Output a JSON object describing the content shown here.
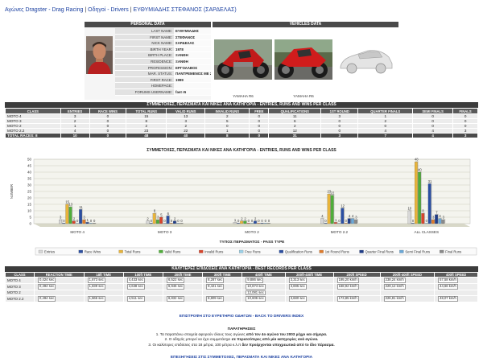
{
  "breadcrumb": {
    "root": "Αγώνες Dragster - Drag Racing",
    "sep1": "|",
    "section": "Οδηγοί - Drivers",
    "sep2": "|",
    "current": "ΕΥΘΥΜΙΑΔΗΣ ΣΤΕΦΑΝΟΣ (ΣΑΡΔΕΛΑΣ)"
  },
  "personal": {
    "header": "PERSONAL DATA",
    "fields": [
      {
        "k": "LAST NAME:",
        "v": "ΕΥΘΥΜΙΑΔΗΣ"
      },
      {
        "k": "FIRST NAME:",
        "v": "ΣΤΕΦΑΝΟΣ"
      },
      {
        "k": "NICK NAME:",
        "v": "ΣΑΡΔΕΛΑΣ"
      },
      {
        "k": "BIRTH YEAR:",
        "v": "1978"
      },
      {
        "k": "BIRTH PLACE:",
        "v": "ΞΑΝΘΗ"
      },
      {
        "k": "RESIDENCE:",
        "v": "ΞΑΝΘΗ"
      },
      {
        "k": "PROFESSION:",
        "v": "ΕΡΓΟΛΑΒΟΣ"
      },
      {
        "k": "MAR. STATUS:",
        "v": "ΠΑΝΤΡΕΜΕΝΟΣ ΜΕ 2 ΠΑΙΔΙΑ"
      },
      {
        "k": "FIRST RACE:",
        "v": "1999"
      },
      {
        "k": "HOMEPAGE:",
        "v": ""
      },
      {
        "k": "FORUMS USERNAME:",
        "v": "fast r6"
      }
    ]
  },
  "vehicles": {
    "header": "VEHICLES DATA",
    "captions": [
      "YAMAHA R6",
      "YAMAHA R6"
    ]
  },
  "stats": {
    "title": "ΣΥΜΜΕΤΟΧΕΣ, ΠΕΡΑΣΜΑΤΑ ΚΑΙ ΝΙΚΕΣ ΑΝΑ ΚΑΤΗΓΟΡΙΑ - ENTRIES, RUNS AND WINS PER CLASS",
    "columns": [
      "CLASS",
      "ENTRIES",
      "RACE WINS",
      "TOTAL RUNS",
      "VALID RUNS",
      "INVALID RUNS",
      "FREE",
      "QUALIFICATIONS",
      "1ST ROUND",
      "QUARTER FINALS",
      "SEMI FINALS",
      "FINALS"
    ],
    "rows": [
      [
        "MOTO 4",
        "3",
        "0",
        "15",
        "13",
        "2",
        "0",
        "11",
        "3",
        "1",
        "0",
        "0"
      ],
      [
        "MOTO 3",
        "2",
        "0",
        "8",
        "3",
        "5",
        "0",
        "6",
        "0",
        "2",
        "0",
        "0"
      ],
      [
        "MOTO 2",
        "1",
        "0",
        "2",
        "2",
        "0",
        "0",
        "2",
        "0",
        "0",
        "0",
        "0"
      ],
      [
        "MOTO 2.2",
        "4",
        "0",
        "23",
        "22",
        "1",
        "0",
        "12",
        "0",
        "4",
        "4",
        "3"
      ]
    ],
    "total": [
      "TOTAL RACES: 8",
      "10",
      "0",
      "48",
      "40",
      "8",
      "0",
      "31",
      "3",
      "7",
      "4",
      "3"
    ]
  },
  "chart_data": {
    "type": "bar",
    "title": "ΣΥΜΜΕΤΟΧΕΣ, ΠΕΡΑΣΜΑΤΑ ΚΑΙ ΝΙΚΕΣ ΑΝΑ ΚΑΤΗΓΟΡΙΑ - ENTRIES, RUNS AND WINS PER CLASS",
    "xlabel": "ΤΥΠΟΣ ΠΕΡΑΣΜΑΤΟΣ - PASS TYPE",
    "ylabel": "NUMBER",
    "ylim": [
      0,
      50
    ],
    "yticks": [
      0,
      5,
      10,
      15,
      20,
      25,
      30,
      35,
      40,
      45,
      50
    ],
    "categories": [
      "MOTO 4",
      "MOTO 3",
      "MOTO 2",
      "MOTO 2.2",
      "ALL CLASSES"
    ],
    "legend_position": "bottom",
    "grid": true,
    "series": [
      {
        "name": "Entries",
        "color": "#d8d8d8",
        "values": [
          3,
          2,
          1,
          4,
          10
        ]
      },
      {
        "name": "Race Wins",
        "color": "#2b4fa3",
        "values": [
          0,
          0,
          0,
          0,
          0
        ]
      },
      {
        "name": "Total Runs",
        "color": "#e8b43a",
        "values": [
          15,
          8,
          2,
          23,
          48
        ]
      },
      {
        "name": "Valid Runs",
        "color": "#4fae3a",
        "values": [
          13,
          3,
          2,
          22,
          40
        ]
      },
      {
        "name": "Invalid Runs",
        "color": "#d8452c",
        "values": [
          2,
          5,
          0,
          1,
          8
        ]
      },
      {
        "name": "Free Runs",
        "color": "#9bd1e8",
        "values": [
          0,
          0,
          0,
          0,
          0
        ]
      },
      {
        "name": "Qualification Runs",
        "color": "#2b4fa3",
        "values": [
          11,
          6,
          2,
          12,
          31
        ]
      },
      {
        "name": "1st Round Runs",
        "color": "#e07b2a",
        "values": [
          3,
          0,
          0,
          0,
          3
        ]
      },
      {
        "name": "Quarter Final Runs",
        "color": "#1f3d8a",
        "values": [
          1,
          2,
          0,
          4,
          7
        ]
      },
      {
        "name": "Semi Final Runs",
        "color": "#6aa8d8",
        "values": [
          0,
          0,
          0,
          4,
          4
        ]
      },
      {
        "name": "Final Runs",
        "color": "#8a8a8a",
        "values": [
          0,
          0,
          0,
          3,
          3
        ]
      }
    ]
  },
  "best": {
    "title": "ΚΑΛΥΤΕΡΕΣ ΕΠΙΔΟΣΕΙΣ ΑΝΑ ΚΑΤΗΓΟΡΙΑ - BEST RECORDS PER CLASS",
    "columns": [
      "CLASS",
      "REACTION TIME",
      "18ft TIME",
      "100ft TIME",
      "200ft TIME",
      "300ft TIME",
      "400ft TIME",
      "200ft-400ft TIME",
      "200ft SPEED",
      "200ft-400ft SPEED",
      "400ft SPEED"
    ],
    "rows": [
      [
        "MOTO 4",
        "0,424 sec",
        "1,673 sec",
        "4,433 sec",
        "6,522 sec",
        "8,287 sec",
        "9,886 sec",
        "3,313 sec",
        "195,20 km/h",
        "238,24 km/h",
        "57,58 km/h"
      ],
      [
        "MOTO 3",
        "0,494 sec",
        "1,839 sec",
        "4,638 sec",
        "6,946 sec",
        "9,421 sec",
        "10,674 sec",
        "3,695 sec",
        "168,92 km/h",
        "229,12 km/h",
        "44,66 km/h"
      ],
      [
        "MOTO 2",
        "",
        "",
        "",
        "",
        "",
        "12,081 sec",
        "",
        "",
        "",
        ""
      ],
      [
        "MOTO 2.2",
        "0,494 sec",
        "1,666 sec",
        "4,511 sec",
        "6,832 sec",
        "8,809 sec",
        "10,606 sec",
        "3,680 sec",
        "173,85 km/h",
        "226,81 km/h",
        "48,07 km/h"
      ]
    ]
  },
  "links": {
    "back": "ΕΠΙΣΤΡΟΦΗ ΣΤΟ ΕΥΡΕΤΗΡΙΟ ΟΔΗΓΩΝ - BACK TO DRIVERS INDEX",
    "bottom": "ΕΠΕΞΗΓΗΣΕΙΣ ΣΤΙΣ ΣΥΜΜΕΤΟΧΕΣ, ΠΕΡΑΣΜΑΤΑ ΚΑΙ ΝΙΚΕΣ ΑΝΑ ΚΑΤΗΓΟΡΙΑ"
  },
  "notes": {
    "title": "ΠΑΡΑΤΗΡΗΣΕΙΣ",
    "n1a": "1. Τα παραπάνω στοιχεία αφορούν όλους τους αγώνες ",
    "n1b": "από τον 4ο αγώνα του 2003 μέχρι και σήμερα.",
    "n2a": "2. Ο οδηγός μπορεί να έχει συμμετάσχει ",
    "n2b": "σε περισσότερες από μία κατηγορίες ανά αγώνα.",
    "n3a": "3. Οι καλύτερες επιδόσεις στα 18 μέτρα, 100 μέτρα κ.λ.π ",
    "n3b": "δεν προέρχονται υποχρεωτικά από το ίδιο πέρασμα."
  }
}
